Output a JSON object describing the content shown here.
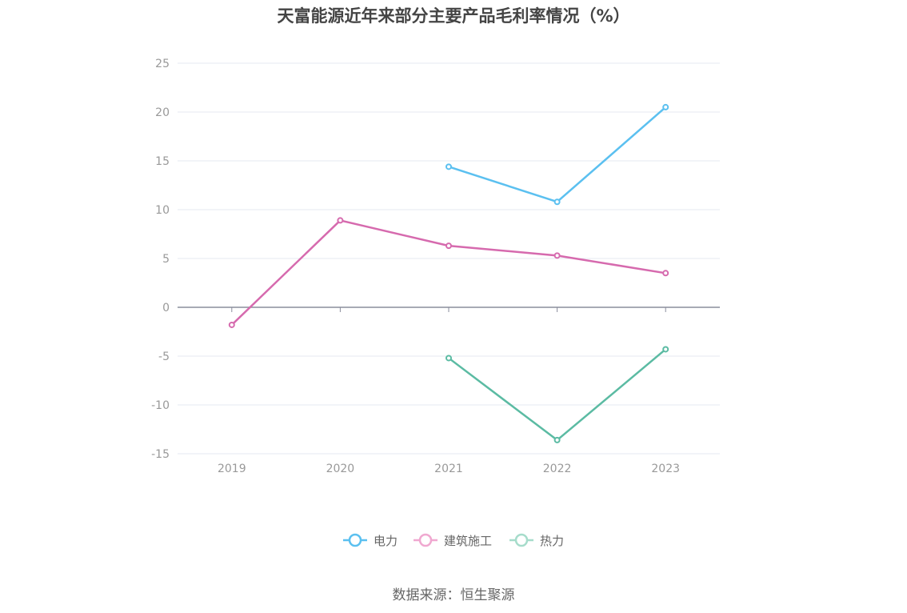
{
  "chart_data": {
    "type": "line",
    "title": "天富能源近年来部分主要产品毛利率情况（%）",
    "categories": [
      "2019",
      "2020",
      "2021",
      "2022",
      "2023"
    ],
    "ylim": [
      -15,
      25
    ],
    "yticks": [
      25,
      20,
      15,
      10,
      5,
      0,
      -5,
      -10,
      -15
    ],
    "grid": true,
    "legend_position": "bottom",
    "series": [
      {
        "name": "电力",
        "color": "#5bc0f0",
        "values": [
          null,
          null,
          14.4,
          10.8,
          20.5
        ]
      },
      {
        "name": "建筑施工",
        "color": "#d66aae",
        "values": [
          -1.8,
          8.9,
          6.3,
          5.3,
          3.5
        ]
      },
      {
        "name": "热力",
        "color": "#5bbba3",
        "values": [
          null,
          null,
          -5.2,
          -13.6,
          -4.3
        ]
      }
    ],
    "legend_light_colors": [
      "#5bc0f0",
      "#f0a8d0",
      "#a6dccb"
    ]
  },
  "source": "数据来源：恒生聚源"
}
